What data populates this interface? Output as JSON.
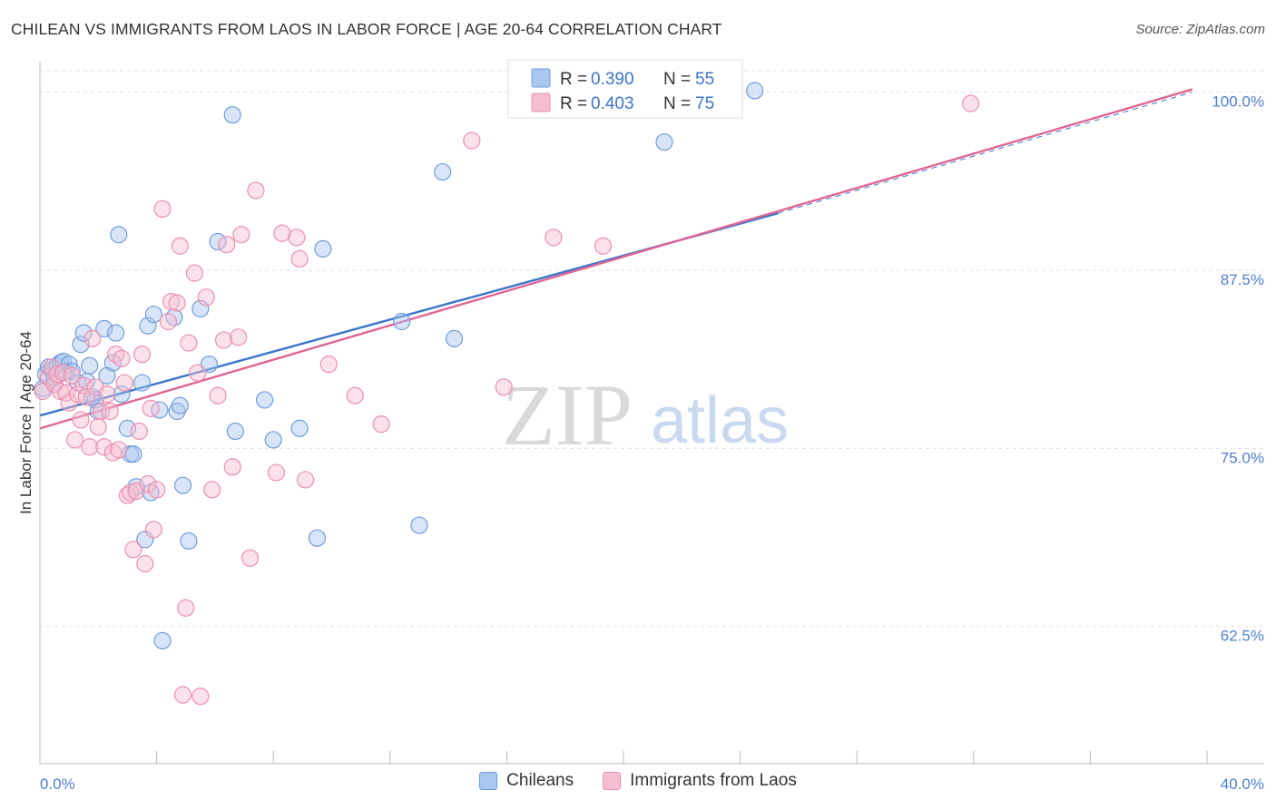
{
  "title": "CHILEAN VS IMMIGRANTS FROM LAOS IN LABOR FORCE | AGE 20-64 CORRELATION CHART",
  "source": "Source: ZipAtlas.com",
  "watermark": {
    "zip": "ZIP",
    "atlas": "atlas"
  },
  "colors": {
    "blue_fill": "#a9c6ef",
    "blue_stroke": "#6f9ddb",
    "blue_line": "#3b76cc",
    "pink_fill": "#f6bfd0",
    "pink_stroke": "#eb8fae",
    "pink_line": "#e06593",
    "tick_label": "#4f7fcf",
    "grid": "#e0e0e0"
  },
  "legend": {
    "rows": [
      {
        "r_label": "R =",
        "r_value": "0.390",
        "n_label": "N =",
        "n_value": "55"
      },
      {
        "r_label": "R =",
        "r_value": "0.403",
        "n_label": "N =",
        "n_value": "75"
      }
    ]
  },
  "bottom_legend": [
    "Chileans",
    "Immigrants from Laos"
  ],
  "chart_data": {
    "type": "scatter",
    "xlabel": "",
    "ylabel": "In Labor Force | Age 20-64",
    "xlim": [
      0,
      40
    ],
    "ylim": [
      53,
      101.5
    ],
    "x_tick_labels": [
      "0.0%",
      "40.0%"
    ],
    "y_ticks": [
      62.5,
      75.0,
      87.5,
      100.0
    ],
    "y_tick_labels": [
      "62.5%",
      "75.0%",
      "87.5%",
      "100.0%"
    ],
    "grid": "horizontal dashed",
    "legend_position": "top-center",
    "series": [
      {
        "name": "Chileans",
        "trend": {
          "x": [
            0,
            25.3
          ],
          "y": [
            77.3,
            91.5
          ]
        },
        "trend_extended": {
          "x": [
            25.3,
            39.5
          ],
          "y": [
            91.5,
            100.0
          ]
        },
        "points": [
          [
            0.1,
            79.2
          ],
          [
            0.2,
            80.2
          ],
          [
            0.3,
            80.7
          ],
          [
            0.4,
            80.5
          ],
          [
            0.5,
            80.0
          ],
          [
            0.5,
            79.5
          ],
          [
            0.6,
            80.8
          ],
          [
            0.7,
            81.0
          ],
          [
            0.8,
            81.1
          ],
          [
            0.9,
            80.4
          ],
          [
            1.0,
            80.9
          ],
          [
            1.1,
            80.4
          ],
          [
            1.3,
            79.6
          ],
          [
            1.4,
            82.3
          ],
          [
            1.5,
            83.1
          ],
          [
            1.6,
            79.7
          ],
          [
            1.7,
            80.8
          ],
          [
            1.8,
            78.6
          ],
          [
            1.9,
            78.4
          ],
          [
            2.0,
            77.6
          ],
          [
            2.2,
            83.4
          ],
          [
            2.3,
            80.1
          ],
          [
            2.5,
            81.0
          ],
          [
            2.6,
            83.1
          ],
          [
            2.7,
            90.0
          ],
          [
            2.8,
            78.8
          ],
          [
            3.0,
            76.4
          ],
          [
            3.1,
            74.6
          ],
          [
            3.2,
            74.6
          ],
          [
            3.3,
            72.3
          ],
          [
            3.5,
            79.6
          ],
          [
            3.6,
            68.6
          ],
          [
            3.7,
            83.6
          ],
          [
            3.8,
            71.9
          ],
          [
            3.9,
            84.4
          ],
          [
            4.1,
            77.7
          ],
          [
            4.2,
            61.5
          ],
          [
            4.6,
            84.2
          ],
          [
            4.7,
            77.6
          ],
          [
            4.8,
            78.0
          ],
          [
            4.9,
            72.4
          ],
          [
            5.1,
            68.5
          ],
          [
            5.5,
            84.8
          ],
          [
            5.8,
            80.9
          ],
          [
            6.1,
            89.5
          ],
          [
            6.6,
            98.4
          ],
          [
            6.7,
            76.2
          ],
          [
            7.7,
            78.4
          ],
          [
            8.0,
            75.6
          ],
          [
            8.9,
            76.4
          ],
          [
            9.5,
            68.7
          ],
          [
            9.7,
            89.0
          ],
          [
            12.4,
            83.9
          ],
          [
            13.0,
            69.6
          ],
          [
            13.8,
            94.4
          ],
          [
            14.2,
            82.7
          ],
          [
            21.4,
            96.5
          ],
          [
            24.5,
            100.1
          ]
        ]
      },
      {
        "name": "Immigrants from Laos",
        "trend": {
          "x": [
            0,
            39.5
          ],
          "y": [
            76.4,
            100.2
          ]
        },
        "points": [
          [
            0.1,
            79.0
          ],
          [
            0.3,
            80.0
          ],
          [
            0.4,
            80.7
          ],
          [
            0.5,
            79.5
          ],
          [
            0.6,
            80.2
          ],
          [
            0.7,
            79.0
          ],
          [
            0.8,
            80.3
          ],
          [
            0.9,
            78.9
          ],
          [
            1.0,
            78.2
          ],
          [
            1.1,
            80.1
          ],
          [
            1.2,
            75.6
          ],
          [
            1.3,
            78.8
          ],
          [
            1.4,
            77.0
          ],
          [
            1.5,
            79.4
          ],
          [
            1.6,
            78.6
          ],
          [
            1.7,
            75.1
          ],
          [
            1.8,
            82.7
          ],
          [
            1.9,
            79.3
          ],
          [
            2.0,
            76.5
          ],
          [
            2.1,
            77.6
          ],
          [
            2.2,
            75.1
          ],
          [
            2.3,
            78.8
          ],
          [
            2.4,
            77.6
          ],
          [
            2.5,
            74.7
          ],
          [
            2.6,
            81.6
          ],
          [
            2.7,
            74.9
          ],
          [
            2.8,
            81.3
          ],
          [
            2.9,
            79.6
          ],
          [
            3.0,
            71.7
          ],
          [
            3.1,
            71.9
          ],
          [
            3.2,
            67.9
          ],
          [
            3.3,
            72.0
          ],
          [
            3.4,
            76.2
          ],
          [
            3.5,
            81.6
          ],
          [
            3.6,
            66.9
          ],
          [
            3.7,
            72.5
          ],
          [
            3.8,
            77.8
          ],
          [
            3.9,
            69.3
          ],
          [
            4.0,
            72.1
          ],
          [
            4.2,
            91.8
          ],
          [
            4.4,
            83.9
          ],
          [
            4.5,
            85.3
          ],
          [
            4.7,
            85.2
          ],
          [
            4.8,
            89.2
          ],
          [
            4.9,
            57.7
          ],
          [
            5.0,
            63.8
          ],
          [
            5.1,
            82.4
          ],
          [
            5.3,
            87.3
          ],
          [
            5.4,
            80.3
          ],
          [
            5.5,
            57.6
          ],
          [
            5.7,
            85.6
          ],
          [
            5.9,
            72.1
          ],
          [
            6.1,
            78.7
          ],
          [
            6.3,
            82.6
          ],
          [
            6.4,
            89.3
          ],
          [
            6.6,
            73.7
          ],
          [
            6.8,
            82.8
          ],
          [
            6.9,
            90.0
          ],
          [
            7.2,
            67.3
          ],
          [
            7.4,
            93.1
          ],
          [
            8.1,
            73.3
          ],
          [
            8.3,
            90.1
          ],
          [
            8.8,
            89.8
          ],
          [
            8.9,
            88.3
          ],
          [
            9.1,
            72.8
          ],
          [
            9.9,
            80.9
          ],
          [
            10.8,
            78.7
          ],
          [
            11.7,
            76.7
          ],
          [
            14.8,
            96.6
          ],
          [
            15.9,
            79.3
          ],
          [
            17.6,
            89.8
          ],
          [
            19.3,
            89.2
          ],
          [
            31.9,
            99.2
          ]
        ]
      }
    ]
  }
}
